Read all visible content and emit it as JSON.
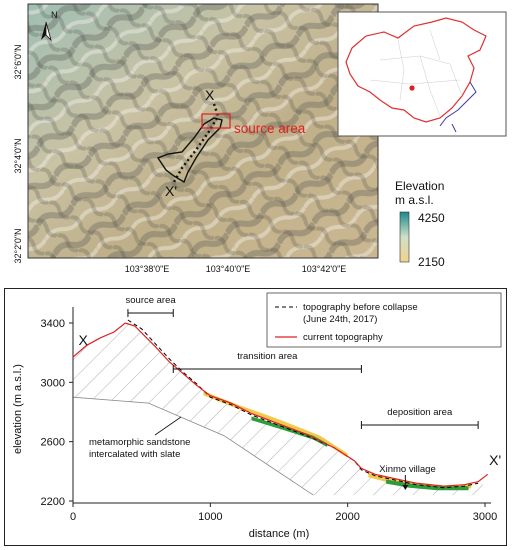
{
  "map": {
    "lat_labels": [
      "32°6'0\"N",
      "32°4'0\"N",
      "32°2'0\"N"
    ],
    "lon_labels": [
      "103°38'0\"E",
      "103°40'0\"E",
      "103°42'0\"E"
    ],
    "north_label": "N",
    "point_x": "X",
    "point_x_prime": "X'",
    "source_area_label": "source area",
    "legend": {
      "title_line1": "Elevation",
      "title_line2": "m a.s.l.",
      "max": "4250",
      "min": "2150",
      "color_max": "#1a8a8c",
      "color_min": "#f3d28c"
    },
    "inset": {
      "boundary_color": "#e03030",
      "marker_color": "#e02020",
      "coast_color": "#3a3aa8"
    }
  },
  "profile": {
    "ylabel": "elevation (m a.s.l.)",
    "xlabel": "distance (m)",
    "x_ticks": [
      "0",
      "1000",
      "2000",
      "3000"
    ],
    "y_ticks": [
      "3400",
      "3000",
      "2600",
      "2200"
    ],
    "point_x": "X",
    "point_x_prime": "X'",
    "source_area": "source area",
    "transition_area": "transition area",
    "deposition_area": "deposition area",
    "rock_label_line1": "metamorphic sandstone",
    "rock_label_line2": "intercalated with slate",
    "village_label": "Xinmo village",
    "legend": {
      "before_line1": "topography before collapse",
      "before_line2": "(June 24th, 2017)",
      "current": "current topography"
    }
  },
  "chart_data": {
    "type": "line",
    "xlabel": "distance (m)",
    "ylabel": "elevation (m a.s.l.)",
    "xlim": [
      0,
      3100
    ],
    "ylim": [
      2200,
      3500
    ],
    "series": [
      {
        "name": "topography before collapse (June 24th, 2017)",
        "style": "dashed",
        "color": "#000000",
        "points": [
          [
            400,
            3420
          ],
          [
            500,
            3360
          ],
          [
            600,
            3260
          ],
          [
            700,
            3160
          ],
          [
            800,
            3070
          ],
          [
            900,
            2990
          ],
          [
            1000,
            2900
          ],
          [
            1150,
            2850
          ],
          [
            1300,
            2780
          ],
          [
            1500,
            2710
          ],
          [
            1700,
            2640
          ],
          [
            1900,
            2560
          ],
          [
            2050,
            2470
          ],
          [
            2100,
            2410
          ],
          [
            2200,
            2370
          ],
          [
            2350,
            2340
          ],
          [
            2500,
            2310
          ],
          [
            2700,
            2290
          ],
          [
            2850,
            2300
          ],
          [
            2950,
            2320
          ]
        ]
      },
      {
        "name": "current topography",
        "style": "solid",
        "color": "#e02020",
        "points": [
          [
            0,
            3170
          ],
          [
            100,
            3250
          ],
          [
            200,
            3300
          ],
          [
            300,
            3340
          ],
          [
            380,
            3400
          ],
          [
            450,
            3380
          ],
          [
            600,
            3240
          ],
          [
            700,
            3140
          ],
          [
            800,
            3060
          ],
          [
            900,
            2980
          ],
          [
            1000,
            2910
          ],
          [
            1150,
            2860
          ],
          [
            1300,
            2790
          ],
          [
            1500,
            2720
          ],
          [
            1700,
            2650
          ],
          [
            1900,
            2560
          ],
          [
            2050,
            2470
          ],
          [
            2100,
            2420
          ],
          [
            2200,
            2380
          ],
          [
            2350,
            2350
          ],
          [
            2500,
            2320
          ],
          [
            2700,
            2300
          ],
          [
            2850,
            2310
          ],
          [
            2950,
            2330
          ],
          [
            3020,
            2380
          ]
        ]
      }
    ],
    "areas": [
      {
        "name": "source area",
        "x": [
          400,
          730
        ]
      },
      {
        "name": "transition area",
        "x": [
          730,
          2100
        ]
      },
      {
        "name": "deposition area",
        "x": [
          2100,
          2950
        ]
      }
    ],
    "annotations": [
      "X",
      "X'",
      "Xinmo village",
      "metamorphic sandstone intercalated with slate"
    ]
  }
}
